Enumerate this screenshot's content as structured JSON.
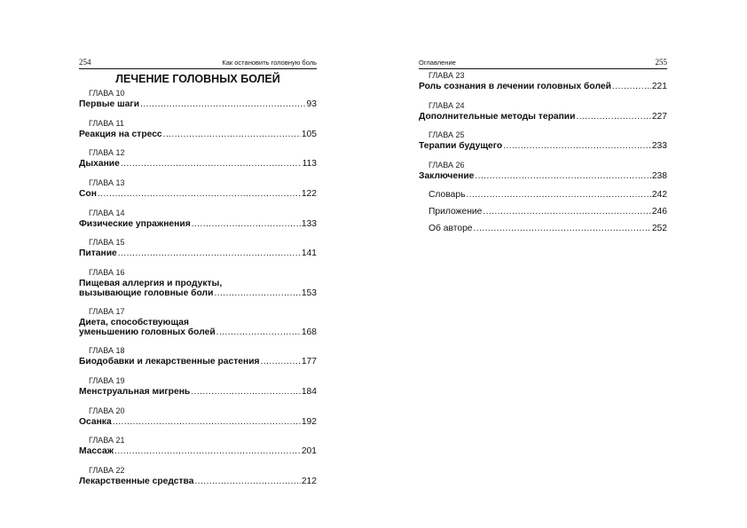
{
  "left_page": {
    "page_number": "254",
    "running_head": "Как остановить головную боль",
    "section_title": "ЛЕЧЕНИЕ ГОЛОВНЫХ БОЛЕЙ",
    "entries": [
      {
        "label": "ГЛАВА 10",
        "title": "Первые шаги",
        "page": "93"
      },
      {
        "label": "ГЛАВА 11",
        "title": "Реакция на стресс",
        "page": "105"
      },
      {
        "label": "ГЛАВА 12",
        "title": "Дыхание",
        "page": "113"
      },
      {
        "label": "ГЛАВА 13",
        "title": "Сон",
        "page": "122"
      },
      {
        "label": "ГЛАВА 14",
        "title": "Физические упражнения",
        "page": "133"
      },
      {
        "label": "ГЛАВА 15",
        "title": "Питание",
        "page": "141"
      },
      {
        "label": "ГЛАВА 16",
        "title_line1": "Пищевая аллергия и продукты,",
        "title": "вызывающие головные боли",
        "page": "153"
      },
      {
        "label": "ГЛАВА 17",
        "title_line1": "Диета, способствующая",
        "title": "уменьшению головных болей",
        "page": "168"
      },
      {
        "label": "ГЛАВА 18",
        "title": "Биодобавки и лекарственные растения",
        "page": "177"
      },
      {
        "label": "ГЛАВА 19",
        "title": "Менструальная мигрень",
        "page": "184"
      },
      {
        "label": "ГЛАВА 20",
        "title": "Осанка",
        "page": "192"
      },
      {
        "label": "ГЛАВА 21",
        "title": "Массаж",
        "page": "201"
      },
      {
        "label": "ГЛАВА 22",
        "title": "Лекарственные средства",
        "page": "212"
      }
    ]
  },
  "right_page": {
    "page_number": "255",
    "running_head": "Оглавление",
    "entries": [
      {
        "label": "ГЛАВА 23",
        "title": "Роль сознания в лечении головных болей",
        "page": "221"
      },
      {
        "label": "ГЛАВА 24",
        "title": "Дополнительные методы терапии",
        "page": "227"
      },
      {
        "label": "ГЛАВА 25",
        "title": "Терапии будущего",
        "page": "233"
      },
      {
        "label": "ГЛАВА 26",
        "title": "Заключение",
        "page": "238"
      }
    ],
    "extras": [
      {
        "title": "Словарь",
        "page": "242"
      },
      {
        "title": "Приложение",
        "page": "246"
      },
      {
        "title": "Об авторе",
        "page": "252"
      }
    ]
  }
}
